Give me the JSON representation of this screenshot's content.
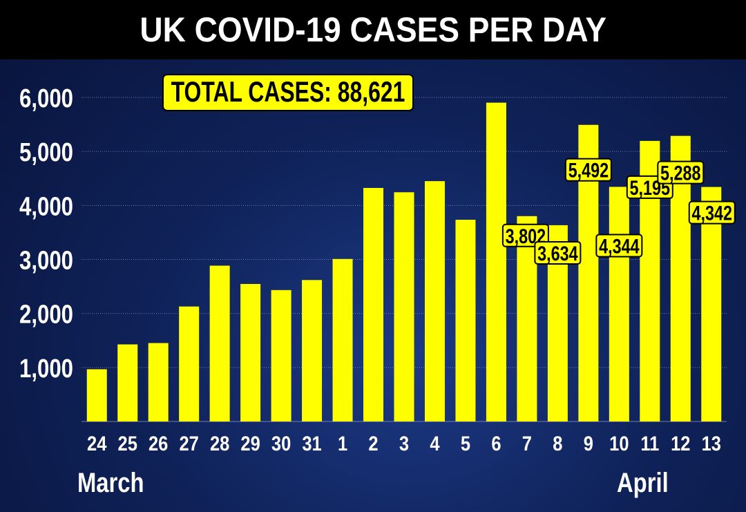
{
  "title": "UK COVID-19 CASES PER DAY",
  "total_label": "TOTAL CASES:  88,621",
  "month_labels": {
    "march": "March",
    "april": "April"
  },
  "colors": {
    "bar": "#ffff00",
    "label_bg": "#ffff00",
    "label_text": "#000000",
    "axis_text": "#ffffff",
    "grid": "#8b96bf"
  },
  "chart_data": {
    "type": "bar",
    "title": "UK COVID-19 CASES PER DAY",
    "categories": [
      "24",
      "25",
      "26",
      "27",
      "28",
      "29",
      "30",
      "31",
      "1",
      "2",
      "3",
      "4",
      "5",
      "6",
      "7",
      "8",
      "9",
      "10",
      "11",
      "12",
      "13"
    ],
    "values": [
      967,
      1427,
      1452,
      2129,
      2885,
      2546,
      2433,
      2619,
      3009,
      4324,
      4244,
      4450,
      3735,
      5903,
      3802,
      3634,
      5492,
      4344,
      5195,
      5288,
      4342
    ],
    "data_labels": [
      "",
      "",
      "",
      "",
      "",
      "",
      "",
      "",
      "",
      "",
      "",
      "",
      "",
      "",
      "3,802",
      "3,634",
      "5,492",
      "4,344",
      "5,195",
      "5,288",
      "4,342"
    ],
    "ylim": [
      0,
      6000
    ],
    "yticks": [
      1000,
      2000,
      3000,
      4000,
      5000,
      6000
    ],
    "ytick_labels": [
      "1,000",
      "2,000",
      "3,000",
      "4,000",
      "5,000",
      "6,000"
    ],
    "grid": true,
    "xlabel": "",
    "ylabel": "",
    "annotation": "TOTAL CASES:  88,621"
  }
}
